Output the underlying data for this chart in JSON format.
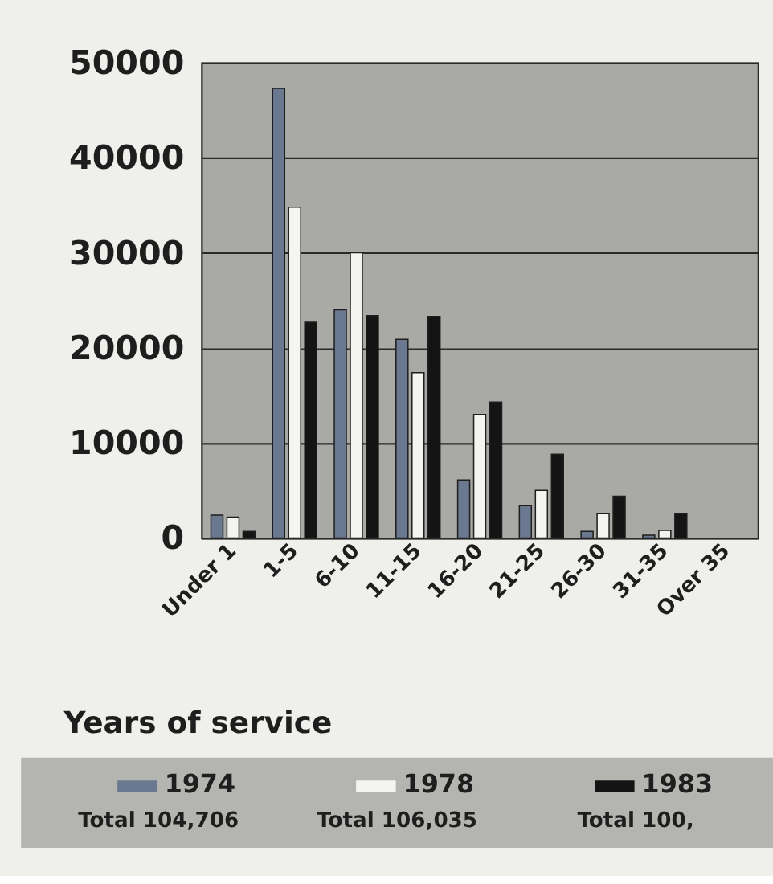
{
  "chart_data": {
    "type": "bar",
    "xlabel": "Years of service",
    "categories": [
      "Under 1",
      "1-5",
      "6-10",
      "11-15",
      "16-20",
      "21-25",
      "26-30",
      "31-35",
      "Over 35"
    ],
    "series": [
      {
        "name": "1974",
        "color": "#6a7890",
        "values": [
          2400,
          47300,
          24000,
          20900,
          6100,
          3400,
          700,
          300,
          null
        ]
      },
      {
        "name": "1978",
        "color": "#f4f4f0",
        "values": [
          2200,
          34800,
          30000,
          17400,
          13000,
          5000,
          2600,
          800,
          null
        ]
      },
      {
        "name": "1983",
        "color": "#141414",
        "values": [
          700,
          22700,
          23400,
          23300,
          14300,
          8800,
          4400,
          2600,
          null
        ]
      }
    ],
    "ylim": [
      0,
      50000
    ],
    "yticks": [
      0,
      10000,
      20000,
      30000,
      40000,
      50000
    ],
    "grid": "y",
    "legend": "bottom",
    "annotations": [
      "Total 104,706",
      "Total 106,035",
      "Total 100,"
    ]
  }
}
